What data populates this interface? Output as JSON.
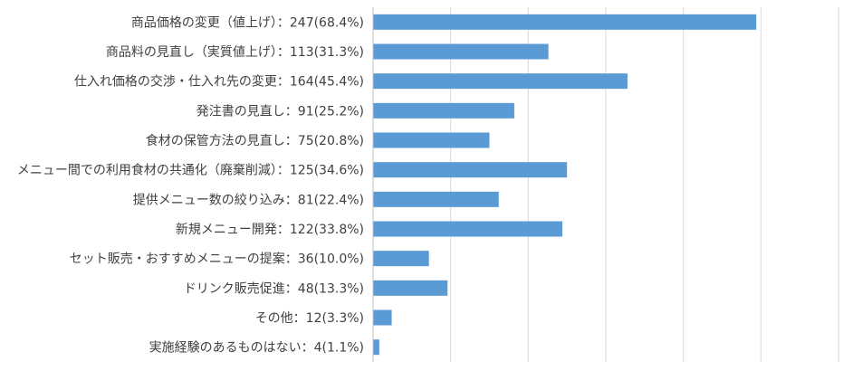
{
  "chart_data": {
    "type": "bar",
    "orientation": "horizontal",
    "title": "",
    "xlabel": "",
    "ylabel": "",
    "xlim": [
      0,
      300
    ],
    "grid": true,
    "legend": "none",
    "bar_color": "#5b9bd5",
    "categories": [
      "商品価格の変更（値上げ）：247(68.4%)",
      "商品料の見直し（実質値上げ）：113(31.3%)",
      "仕入れ価格の交渉・仕入れ先の変更：164(45.4%)",
      "発注書の見直し：91(25.2%)",
      "食材の保管方法の見直し：75(20.8%)",
      "メニュー間での利用食材の共通化（廃棄削減）：125(34.6%)",
      "提供メニュー数の絞り込み：81(22.4%)",
      "新規メニュー開発：122(33.8%)",
      "セット販売・おすすめメニューの提案：36(10.0%)",
      "ドリンク販売促進：48(13.3%)",
      "その他：12(3.3%)",
      "実施経験のあるものはない：4(1.1%)"
    ],
    "values": [
      247,
      113,
      164,
      91,
      75,
      125,
      81,
      122,
      36,
      48,
      12,
      4
    ]
  }
}
